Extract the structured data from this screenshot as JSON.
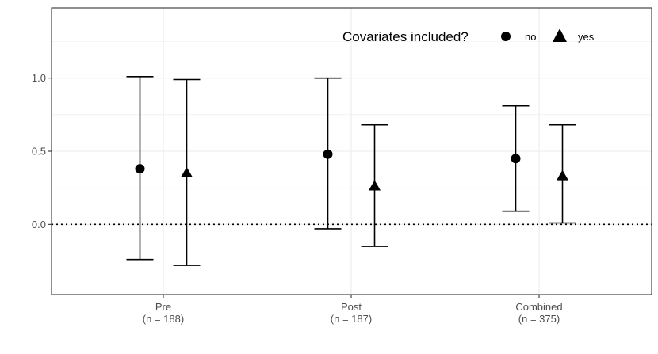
{
  "chart_data": {
    "type": "scatter",
    "subtype": "point-range",
    "categories": [
      {
        "label": "Pre",
        "sublabel": "(n = 188)"
      },
      {
        "label": "Post",
        "sublabel": "(n = 187)"
      },
      {
        "label": "Combined",
        "sublabel": "(n = 375)"
      }
    ],
    "series": [
      {
        "name": "no",
        "shape": "circle",
        "points": [
          {
            "category": "Pre",
            "estimate": 0.38,
            "lower": -0.24,
            "upper": 1.01
          },
          {
            "category": "Post",
            "estimate": 0.48,
            "lower": -0.03,
            "upper": 1.0
          },
          {
            "category": "Combined",
            "estimate": 0.45,
            "lower": 0.09,
            "upper": 0.81
          }
        ]
      },
      {
        "name": "yes",
        "shape": "triangle",
        "points": [
          {
            "category": "Pre",
            "estimate": 0.35,
            "lower": -0.28,
            "upper": 0.99
          },
          {
            "category": "Post",
            "estimate": 0.26,
            "lower": -0.15,
            "upper": 0.68
          },
          {
            "category": "Combined",
            "estimate": 0.33,
            "lower": 0.01,
            "upper": 0.68
          }
        ]
      }
    ],
    "y_ticks": [
      0.0,
      0.5,
      1.0
    ],
    "y_tick_labels": [
      "0.0",
      "0.5",
      "1.0"
    ],
    "ylim": [
      -0.48,
      1.48
    ],
    "reference_line": {
      "y": 0,
      "style": "dotted"
    },
    "legend": {
      "title": "Covariates included?",
      "position": "top-right-inside",
      "orientation": "horizontal"
    },
    "grid": true,
    "theme": "bw",
    "colors": {
      "ink": "#000000",
      "grid": "#ebebeb",
      "axis_text": "#4d4d4d",
      "panel_border": "#333333"
    }
  }
}
